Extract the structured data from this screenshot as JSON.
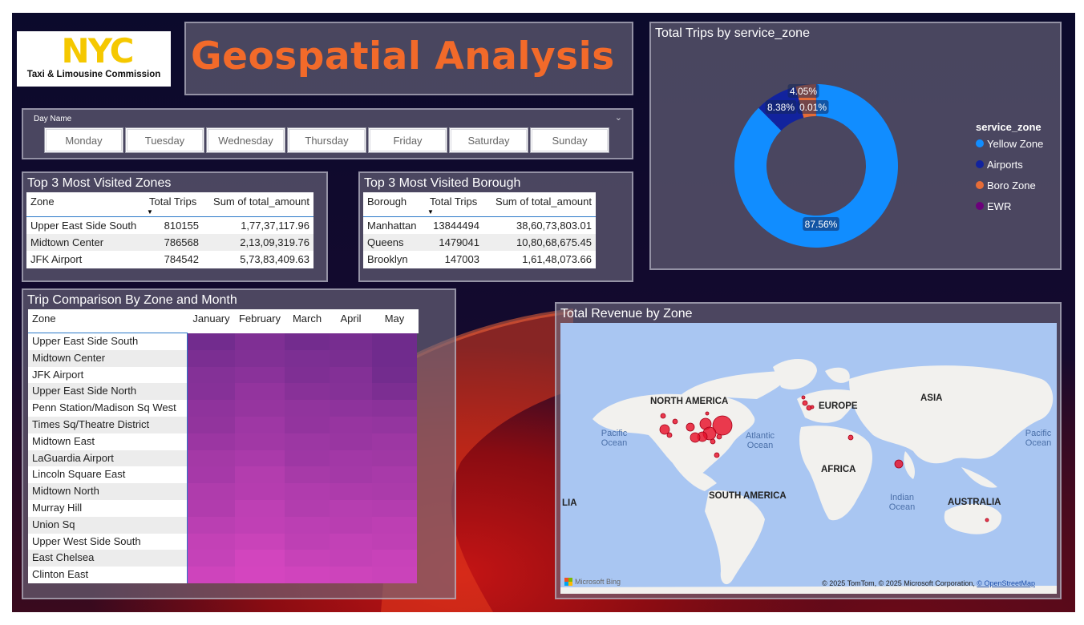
{
  "logo": {
    "mark": "NYC",
    "subtitle": "Taxi & Limousine Commission"
  },
  "page_title": "Geospatial Analysis",
  "slicer": {
    "label": "Day Name",
    "days": [
      "Monday",
      "Tuesday",
      "Wednesday",
      "Thursday",
      "Friday",
      "Saturday",
      "Sunday"
    ]
  },
  "top_zones": {
    "title": "Top 3 Most Visited Zones",
    "columns": [
      "Zone",
      "Total Trips",
      "Sum of total_amount"
    ],
    "rows": [
      [
        "Upper East Side South",
        "810155",
        "1,77,37,117.96"
      ],
      [
        "Midtown Center",
        "786568",
        "2,13,09,319.76"
      ],
      [
        "JFK Airport",
        "784542",
        "5,73,83,409.63"
      ]
    ]
  },
  "top_boroughs": {
    "title": "Top 3 Most Visited Borough",
    "columns": [
      "Borough",
      "Total Trips",
      "Sum of total_amount"
    ],
    "rows": [
      [
        "Manhattan",
        "13844494",
        "38,60,73,803.01"
      ],
      [
        "Queens",
        "1479041",
        "10,80,68,675.45"
      ],
      [
        "Brooklyn",
        "147003",
        "1,61,48,073.66"
      ]
    ]
  },
  "donut": {
    "title": "Total Trips by service_zone",
    "legend_title": "service_zone",
    "legend": [
      {
        "name": "Yellow Zone",
        "color": "#118dff"
      },
      {
        "name": "Airports",
        "color": "#12239e"
      },
      {
        "name": "Boro Zone",
        "color": "#e66c37"
      },
      {
        "name": "EWR",
        "color": "#6b007b"
      }
    ],
    "slice_labels": [
      "87.56%",
      "8.38%",
      "4.05%",
      "0.01%"
    ]
  },
  "chart_data": {
    "type": "pie",
    "title": "Total Trips by service_zone",
    "categories": [
      "Yellow Zone",
      "Airports",
      "Boro Zone",
      "EWR"
    ],
    "values": [
      87.56,
      8.38,
      4.05,
      0.01
    ],
    "legend": "right"
  },
  "matrix": {
    "title": "Trip Comparison By Zone and Month",
    "zone_header": "Zone",
    "months": [
      "January",
      "February",
      "March",
      "April",
      "May"
    ],
    "zones": [
      "Upper East Side South",
      "Midtown Center",
      "JFK Airport",
      "Upper East Side North",
      "Penn Station/Madison Sq West",
      "Times Sq/Theatre District",
      "Midtown East",
      "LaGuardia Airport",
      "Lincoln Square East",
      "Midtown North",
      "Murray Hill",
      "Union Sq",
      "Upper West Side South",
      "East Chelsea",
      "Clinton East"
    ]
  },
  "map": {
    "title": "Total Revenue by Zone",
    "continents": [
      "NORTH AMERICA",
      "EUROPE",
      "ASIA",
      "AFRICA",
      "SOUTH AMERICA",
      "AUSTRALIA",
      "LIA"
    ],
    "oceans": [
      "Pacific Ocean",
      "Atlantic Ocean",
      "Pacific Ocean",
      "Indian Ocean"
    ],
    "bing": "Microsoft Bing",
    "attribution": "© 2025 TomTom, © 2025 Microsoft Corporation, ",
    "attribution_link": "© OpenStreetMap",
    "marker_color": "#e8102a"
  }
}
